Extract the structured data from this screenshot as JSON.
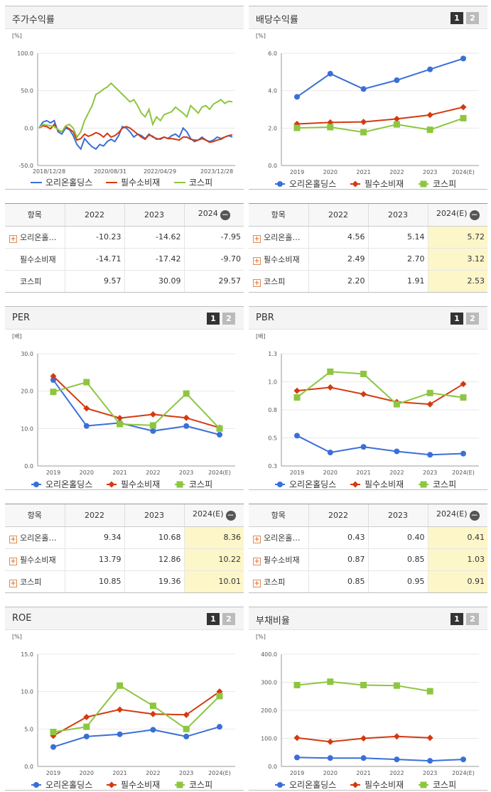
{
  "colors": {
    "orion": "#3a6fd8",
    "staples": "#d43a10",
    "kospi": "#8dc63f"
  },
  "panels": {
    "stock_return": {
      "title": "주가수익률",
      "chart_data": {
        "type": "line",
        "unit": "[%]",
        "ylim": [
          -50,
          100
        ],
        "yticks": [
          "100.0",
          "50.0",
          "0.0",
          "-50.0"
        ],
        "xticks": [
          "2018/12/28",
          "2020/08/31",
          "2022/04/29",
          "2023/12/28"
        ],
        "series": [
          {
            "name": "오리온홀딩스",
            "values": [
              0,
              8,
              10,
              7,
              10,
              -5,
              -8,
              0,
              -2,
              -10,
              -22,
              -28,
              -14,
              -20,
              -25,
              -28,
              -22,
              -24,
              -18,
              -15,
              -18,
              -10,
              2,
              0,
              -5,
              -12,
              -8,
              -10,
              -14,
              -8,
              -12,
              -14,
              -15,
              -12,
              -14,
              -10,
              -8,
              -12,
              0,
              -5,
              -14,
              -18,
              -16,
              -12,
              -16,
              -18,
              -16,
              -12,
              -14,
              -12,
              -10,
              -12
            ]
          },
          {
            "name": "필수소비재",
            "values": [
              0,
              3,
              2,
              -1,
              5,
              -3,
              -5,
              2,
              -1,
              -5,
              -16,
              -14,
              -8,
              -11,
              -9,
              -6,
              -8,
              -12,
              -7,
              -12,
              -10,
              -6,
              0,
              2,
              0,
              -4,
              -8,
              -12,
              -15,
              -9,
              -11,
              -15,
              -14,
              -12,
              -14,
              -14,
              -15,
              -16,
              -12,
              -12,
              -15,
              -16,
              -16,
              -14,
              -16,
              -19,
              -18,
              -16,
              -15,
              -12,
              -10,
              -9
            ]
          },
          {
            "name": "코스피",
            "values": [
              0,
              5,
              4,
              3,
              2,
              -2,
              -5,
              3,
              5,
              0,
              -12,
              -5,
              10,
              20,
              30,
              45,
              48,
              52,
              55,
              60,
              55,
              50,
              45,
              40,
              35,
              38,
              30,
              20,
              15,
              25,
              5,
              15,
              10,
              18,
              20,
              22,
              28,
              24,
              20,
              15,
              30,
              25,
              20,
              28,
              30,
              25,
              32,
              35,
              38,
              33,
              36,
              35
            ]
          }
        ]
      }
    },
    "dividend": {
      "title": "배당수익률",
      "chart_data": {
        "type": "line",
        "unit": "[%]",
        "ylim": [
          0,
          6
        ],
        "yticks": [
          "6.0",
          "4.0",
          "2.0",
          "0.0"
        ],
        "categories": [
          "2019",
          "2020",
          "2021",
          "2022",
          "2023",
          "2024(E)"
        ],
        "series": [
          {
            "name": "오리온홀딩스",
            "values": [
              3.67,
              4.91,
              4.09,
              4.56,
              5.14,
              5.72
            ]
          },
          {
            "name": "필수소비재",
            "values": [
              2.22,
              2.3,
              2.33,
              2.49,
              2.7,
              3.12
            ]
          },
          {
            "name": "코스피",
            "values": [
              2.01,
              2.05,
              1.78,
              2.2,
              1.91,
              2.53
            ]
          }
        ]
      }
    },
    "per": {
      "title": "PER",
      "chart_data": {
        "type": "line",
        "unit": "[배]",
        "ylim": [
          0,
          30
        ],
        "yticks": [
          "30.0",
          "20.0",
          "10.0",
          "0.0"
        ],
        "categories": [
          "2019",
          "2020",
          "2021",
          "2022",
          "2023",
          "2024(E)"
        ],
        "series": [
          {
            "name": "오리온홀딩스",
            "values": [
              23.0,
              10.7,
              11.5,
              9.34,
              10.68,
              8.36
            ]
          },
          {
            "name": "필수소비재",
            "values": [
              24.0,
              15.4,
              12.8,
              13.79,
              12.86,
              10.22
            ]
          },
          {
            "name": "코스피",
            "values": [
              19.8,
              22.4,
              11.2,
              10.85,
              19.36,
              10.01
            ]
          }
        ]
      }
    },
    "pbr": {
      "title": "PBR",
      "chart_data": {
        "type": "line",
        "unit": "[배]",
        "ylim": [
          0.3,
          1.3
        ],
        "yticks": [
          "1.3",
          "1.0",
          "0.8",
          "0.5",
          "0.3"
        ],
        "categories": [
          "2019",
          "2020",
          "2021",
          "2022",
          "2023",
          "2024(E)"
        ],
        "series": [
          {
            "name": "오리온홀딩스",
            "values": [
              0.57,
              0.42,
              0.47,
              0.43,
              0.4,
              0.41
            ]
          },
          {
            "name": "필수소비재",
            "values": [
              0.97,
              1.0,
              0.94,
              0.87,
              0.85,
              1.03
            ]
          },
          {
            "name": "코스피",
            "values": [
              0.91,
              1.14,
              1.12,
              0.85,
              0.95,
              0.91
            ]
          }
        ]
      }
    },
    "roe": {
      "title": "ROE",
      "chart_data": {
        "type": "line",
        "unit": "[%]",
        "ylim": [
          0,
          15
        ],
        "yticks": [
          "15.0",
          "10.0",
          "5.0",
          "0.0"
        ],
        "categories": [
          "2019",
          "2020",
          "2021",
          "2022",
          "2023",
          "2024(E)"
        ],
        "series": [
          {
            "name": "오리온홀딩스",
            "values": [
              2.6,
              4.0,
              4.3,
              4.9,
              4.0,
              5.3
            ]
          },
          {
            "name": "필수소비재",
            "values": [
              4.1,
              6.6,
              7.6,
              7.0,
              6.9,
              10.0
            ]
          },
          {
            "name": "코스피",
            "values": [
              4.6,
              5.3,
              10.8,
              8.1,
              5.0,
              9.4
            ]
          }
        ]
      }
    },
    "debt": {
      "title": "부채비율",
      "chart_data": {
        "type": "line",
        "unit": "[%]",
        "ylim": [
          0,
          400
        ],
        "yticks": [
          "400.0",
          "300.0",
          "200.0",
          "100.0",
          "0.0"
        ],
        "categories": [
          "2019",
          "2020",
          "2021",
          "2022",
          "2023",
          "2024(E)"
        ],
        "series": [
          {
            "name": "오리온홀딩스",
            "values": [
              32,
              30,
              30,
              25,
              20,
              25
            ]
          },
          {
            "name": "필수소비재",
            "values": [
              102,
              88,
              100,
              107,
              102,
              null
            ]
          },
          {
            "name": "코스피",
            "values": [
              290,
              302,
              290,
              288,
              268,
              null
            ]
          }
        ]
      }
    }
  },
  "legend": [
    "오리온홀딩스",
    "필수소비재",
    "코스피"
  ],
  "tables": {
    "stock_return": {
      "headers": [
        "항목",
        "2022",
        "2023",
        "2024"
      ],
      "rows": [
        {
          "name": "오리온홀…",
          "vals": [
            "-10.23",
            "-14.62",
            "-7.95"
          ]
        },
        {
          "name": "필수소비재",
          "vals": [
            "-14.71",
            "-17.42",
            "-9.70"
          ]
        },
        {
          "name": "코스피",
          "vals": [
            "9.57",
            "30.09",
            "29.57"
          ]
        }
      ]
    },
    "dividend": {
      "headers": [
        "항목",
        "2022",
        "2023",
        "2024(E)"
      ],
      "rows": [
        {
          "name": "오리온홀…",
          "vals": [
            "4.56",
            "5.14",
            "5.72"
          ]
        },
        {
          "name": "필수소비재",
          "vals": [
            "2.49",
            "2.70",
            "3.12"
          ]
        },
        {
          "name": "코스피",
          "vals": [
            "2.20",
            "1.91",
            "2.53"
          ]
        }
      ]
    },
    "per": {
      "headers": [
        "항목",
        "2022",
        "2023",
        "2024(E)"
      ],
      "rows": [
        {
          "name": "오리온홀…",
          "vals": [
            "9.34",
            "10.68",
            "8.36"
          ]
        },
        {
          "name": "필수소비재",
          "vals": [
            "13.79",
            "12.86",
            "10.22"
          ]
        },
        {
          "name": "코스피",
          "vals": [
            "10.85",
            "19.36",
            "10.01"
          ]
        }
      ]
    },
    "pbr": {
      "headers": [
        "항목",
        "2022",
        "2023",
        "2024(E)"
      ],
      "rows": [
        {
          "name": "오리온홀…",
          "vals": [
            "0.43",
            "0.40",
            "0.41"
          ]
        },
        {
          "name": "필수소비재",
          "vals": [
            "0.87",
            "0.85",
            "1.03"
          ]
        },
        {
          "name": "코스피",
          "vals": [
            "0.85",
            "0.95",
            "0.91"
          ]
        }
      ]
    }
  },
  "pager": {
    "p1": "1",
    "p2": "2"
  }
}
